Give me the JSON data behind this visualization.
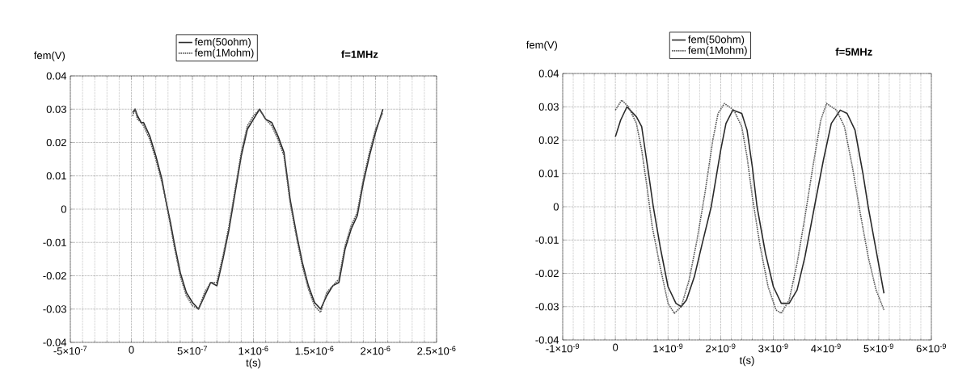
{
  "chart_data": [
    {
      "type": "line",
      "title": "f=1MHz",
      "xlabel": "t(s)",
      "ylabel": "fem(V)",
      "legend": "top",
      "grid": true,
      "xlim": [
        -5e-07,
        2.5e-06
      ],
      "ylim": [
        -0.04,
        0.04
      ],
      "xticks": [
        {
          "value": -5e-07,
          "label": "-5×10$^{-7}$"
        },
        0,
        {
          "value": 5e-07,
          "label": "5×10$^{-7}$"
        },
        {
          "value": 1e-06,
          "label": "1×10$^{-6}$"
        },
        {
          "value": 1.5e-06,
          "label": "1.5×10$^{-6}$"
        },
        {
          "value": 2e-06,
          "label": "2×10$^{-6}$"
        },
        {
          "value": 2.5e-06,
          "label": "2.5×10$^{-6}$"
        }
      ],
      "yticks": [
        -0.04,
        -0.03,
        -0.02,
        -0.01,
        0,
        0.01,
        0.02,
        0.03,
        0.04
      ],
      "series": [
        {
          "name": "fem(50ohm)",
          "color": "#2a2a2a",
          "line_style": "solid",
          "x": [
            1e-08,
            3e-08,
            5e-08,
            8e-08,
            1e-07,
            1.5e-07,
            2e-07,
            2.5e-07,
            2.8e-07,
            3.2e-07,
            3.5e-07,
            4e-07,
            4.5e-07,
            5e-07,
            5.5e-07,
            6e-07,
            6.5e-07,
            7e-07,
            7.5e-07,
            8e-07,
            8.5e-07,
            9e-07,
            9.5e-07,
            1e-06,
            1.05e-06,
            1.1e-06,
            1.15e-06,
            1.2e-06,
            1.25e-06,
            1.3e-06,
            1.35e-06,
            1.4e-06,
            1.45e-06,
            1.5e-06,
            1.55e-06,
            1.6e-06,
            1.65e-06,
            1.7e-06,
            1.75e-06,
            1.8e-06,
            1.85e-06,
            1.9e-06,
            1.95e-06,
            2e-06,
            2.06e-06
          ],
          "values": [
            0.029,
            0.03,
            0.028,
            0.026,
            0.026,
            0.022,
            0.016,
            0.009,
            0.003,
            -0.004,
            -0.01,
            -0.019,
            -0.025,
            -0.028,
            -0.03,
            -0.026,
            -0.022,
            -0.023,
            -0.015,
            -0.006,
            0.005,
            0.016,
            0.024,
            0.027,
            0.03,
            0.027,
            0.026,
            0.022,
            0.017,
            0.003,
            -0.007,
            -0.016,
            -0.023,
            -0.028,
            -0.03,
            -0.026,
            -0.023,
            -0.022,
            -0.012,
            -0.006,
            -0.002,
            0.008,
            0.016,
            0.023,
            0.03
          ]
        },
        {
          "name": "fem(1Mohm)",
          "color": "#555555",
          "line_style": "dotted",
          "x": [
            1e-08,
            3e-08,
            5e-08,
            8e-08,
            1e-07,
            1.5e-07,
            2e-07,
            2.5e-07,
            2.8e-07,
            3.2e-07,
            3.5e-07,
            4e-07,
            4.5e-07,
            5e-07,
            5.5e-07,
            6e-07,
            6.5e-07,
            7e-07,
            7.5e-07,
            8e-07,
            8.5e-07,
            9e-07,
            9.5e-07,
            1e-06,
            1.05e-06,
            1.1e-06,
            1.15e-06,
            1.2e-06,
            1.25e-06,
            1.3e-06,
            1.35e-06,
            1.4e-06,
            1.45e-06,
            1.5e-06,
            1.55e-06,
            1.6e-06,
            1.65e-06,
            1.7e-06,
            1.75e-06,
            1.8e-06,
            1.85e-06,
            1.9e-06,
            1.95e-06,
            2e-06,
            2.06e-06
          ],
          "values": [
            0.028,
            0.03,
            0.027,
            0.026,
            0.025,
            0.021,
            0.015,
            0.008,
            0.003,
            -0.005,
            -0.011,
            -0.02,
            -0.026,
            -0.029,
            -0.03,
            -0.025,
            -0.022,
            -0.022,
            -0.014,
            -0.005,
            0.006,
            0.017,
            0.025,
            0.028,
            0.03,
            0.027,
            0.025,
            0.021,
            0.016,
            0.002,
            -0.008,
            -0.017,
            -0.024,
            -0.029,
            -0.031,
            -0.025,
            -0.023,
            -0.021,
            -0.011,
            -0.005,
            -0.001,
            0.009,
            0.017,
            0.024,
            0.029
          ]
        }
      ]
    },
    {
      "type": "line",
      "title": "f=5MHz",
      "xlabel": "t(s)",
      "ylabel": "fem(V)",
      "legend": "top",
      "grid": true,
      "xlim": [
        -1e-09,
        6e-09
      ],
      "ylim": [
        -0.04,
        0.04
      ],
      "xticks": [
        {
          "value": -1e-09,
          "label": "-1×10$^{-9}$"
        },
        0,
        {
          "value": 1e-09,
          "label": "1×10$^{-9}$"
        },
        {
          "value": 2e-09,
          "label": "2×10$^{-9}$"
        },
        {
          "value": 3e-09,
          "label": "3×10$^{-9}$"
        },
        {
          "value": 4e-09,
          "label": "4×10$^{-9}$"
        },
        {
          "value": 5e-09,
          "label": "5×10$^{-9}$"
        },
        {
          "value": 6e-09,
          "label": "6×10$^{-9}$"
        }
      ],
      "yticks": [
        -0.04,
        -0.03,
        -0.02,
        -0.01,
        0,
        0.01,
        0.02,
        0.03,
        0.04
      ],
      "series": [
        {
          "name": "fem(50ohm)",
          "color": "#2a2a2a",
          "line_style": "solid",
          "x": [
            0,
            1e-10,
            2.2e-10,
            4e-10,
            5e-10,
            6.3e-10,
            7.2e-10,
            8.5e-10,
            1e-09,
            1.15e-09,
            1.25e-09,
            1.35e-09,
            1.5e-09,
            1.65e-09,
            1.82e-09,
            2e-09,
            2.1e-09,
            2.23e-09,
            2.4e-09,
            2.5e-09,
            2.6e-09,
            2.69e-09,
            2.85e-09,
            3e-09,
            3.15e-09,
            3.3e-09,
            3.45e-09,
            3.6e-09,
            3.78e-09,
            3.95e-09,
            4.1e-09,
            4.27e-09,
            4.4e-09,
            4.55e-09,
            4.7e-09,
            4.8e-09,
            4.95e-09,
            5.1e-09
          ],
          "values": [
            0.021,
            0.026,
            0.03,
            0.027,
            0.024,
            0.01,
            0.0,
            -0.012,
            -0.024,
            -0.029,
            -0.03,
            -0.028,
            -0.021,
            -0.011,
            0.0,
            0.017,
            0.025,
            0.029,
            0.028,
            0.023,
            0.012,
            0.0,
            -0.014,
            -0.024,
            -0.029,
            -0.029,
            -0.025,
            -0.015,
            0.0,
            0.014,
            0.025,
            0.029,
            0.028,
            0.023,
            0.01,
            0.0,
            -0.013,
            -0.026
          ]
        },
        {
          "name": "fem(1Mohm)",
          "color": "#555555",
          "line_style": "dotted",
          "x": [
            0,
            1.2e-10,
            2.5e-10,
            4e-10,
            5e-10,
            6e-10,
            7e-10,
            8.5e-10,
            1e-09,
            1.12e-09,
            1.25e-09,
            1.4e-09,
            1.55e-09,
            1.7e-09,
            1.85e-09,
            1.95e-09,
            2.07e-09,
            2.25e-09,
            2.4e-09,
            2.5e-09,
            2.6e-09,
            2.75e-09,
            2.9e-09,
            3.05e-09,
            3.15e-09,
            3.3e-09,
            3.45e-09,
            3.6e-09,
            3.75e-09,
            3.9e-09,
            4.01e-09,
            4.2e-09,
            4.35e-09,
            4.5e-09,
            4.65e-09,
            4.8e-09,
            4.95e-09,
            5.1e-09
          ],
          "values": [
            0.029,
            0.032,
            0.03,
            0.025,
            0.017,
            0.006,
            -0.006,
            -0.018,
            -0.029,
            -0.032,
            -0.03,
            -0.022,
            -0.01,
            0.004,
            0.02,
            0.028,
            0.031,
            0.029,
            0.024,
            0.015,
            0.003,
            -0.012,
            -0.024,
            -0.031,
            -0.032,
            -0.028,
            -0.017,
            -0.003,
            0.012,
            0.026,
            0.031,
            0.029,
            0.024,
            0.012,
            -0.002,
            -0.015,
            -0.025,
            -0.031
          ]
        }
      ]
    }
  ]
}
